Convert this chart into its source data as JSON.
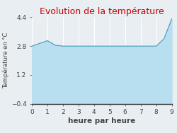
{
  "title": "Evolution de la température",
  "title_color": "#cc0000",
  "xlabel": "heure par heure",
  "ylabel": "Température en °C",
  "background_color": "#e8eef2",
  "plot_bg_color": "#e8eef2",
  "fill_color": "#b8dff0",
  "line_color": "#4499bb",
  "x": [
    0,
    1,
    1.5,
    2,
    3,
    4,
    5,
    6,
    7,
    8,
    8.5,
    9
  ],
  "y": [
    2.8,
    3.1,
    2.85,
    2.8,
    2.8,
    2.8,
    2.8,
    2.8,
    2.8,
    2.8,
    3.2,
    4.3
  ],
  "ylim": [
    -0.4,
    4.4
  ],
  "xlim": [
    0,
    9
  ],
  "yticks": [
    -0.4,
    1.2,
    2.8,
    4.4
  ],
  "xticks": [
    0,
    1,
    2,
    3,
    4,
    5,
    6,
    7,
    8,
    9
  ],
  "fill_baseline": -0.4,
  "grid_color": "#ffffff",
  "tick_color": "#444444",
  "label_fontsize": 6.5,
  "title_fontsize": 9,
  "xlabel_fontsize": 7.5,
  "ylabel_fontsize": 6
}
